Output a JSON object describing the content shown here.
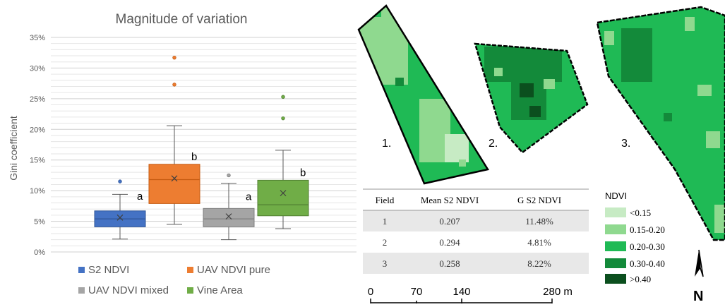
{
  "chart_data": {
    "type": "boxplot",
    "title": "Magnitude of variation",
    "ylabel": "Gini coefficient",
    "xlabel": "",
    "ylim": [
      0,
      35
    ],
    "yticks": [
      "0%",
      "5%",
      "10%",
      "15%",
      "20%",
      "25%",
      "30%",
      "35%"
    ],
    "grid": true,
    "legend_position": "bottom",
    "series": [
      {
        "name": "S2 NDVI",
        "color": "#4472C4",
        "min": 2.1,
        "q1": 4.1,
        "median": 5.4,
        "q3": 6.7,
        "max": 9.4,
        "mean": 5.6,
        "outliers": [
          11.5
        ],
        "group": "a"
      },
      {
        "name": "UAV NDVI pure",
        "color": "#ED7D31",
        "min": 4.5,
        "q1": 7.9,
        "median": 11.8,
        "q3": 14.3,
        "max": 20.6,
        "mean": 12.0,
        "outliers": [
          27.3,
          31.7
        ],
        "group": "b"
      },
      {
        "name": "UAV NDVI mixed",
        "color": "#A5A5A5",
        "min": 2.0,
        "q1": 4.1,
        "median": 5.4,
        "q3": 7.1,
        "max": 11.2,
        "mean": 5.8,
        "outliers": [
          12.5
        ],
        "group": "a"
      },
      {
        "name": "Vine Area",
        "color": "#70AD47",
        "min": 3.8,
        "q1": 5.9,
        "median": 7.7,
        "q3": 11.7,
        "max": 16.6,
        "mean": 9.6,
        "outliers": [
          21.8,
          25.3
        ],
        "group": "b"
      }
    ]
  },
  "maps": {
    "field_labels": [
      "1.",
      "2.",
      "3."
    ]
  },
  "table": {
    "headers": [
      "Field",
      "Mean S2 NDVI",
      "G S2 NDVI"
    ],
    "rows": [
      [
        "1",
        "0.207",
        "11.48%"
      ],
      [
        "2",
        "0.294",
        "4.81%"
      ],
      [
        "3",
        "0.258",
        "8.22%"
      ]
    ]
  },
  "ndvi_legend": {
    "title": "NDVI",
    "classes": [
      {
        "label": "<0.15",
        "color": "#C7EBC4"
      },
      {
        "label": "0.15-0.20",
        "color": "#8FD98F"
      },
      {
        "label": "0.20-0.30",
        "color": "#1FBA55"
      },
      {
        "label": "0.30-0.40",
        "color": "#138A3A"
      },
      {
        "label": ">0.40",
        "color": "#0B4F1E"
      }
    ]
  },
  "scale_bar": {
    "labels": [
      "0",
      "70",
      "140",
      "280 m"
    ]
  },
  "north_arrow": {
    "label": "N"
  }
}
